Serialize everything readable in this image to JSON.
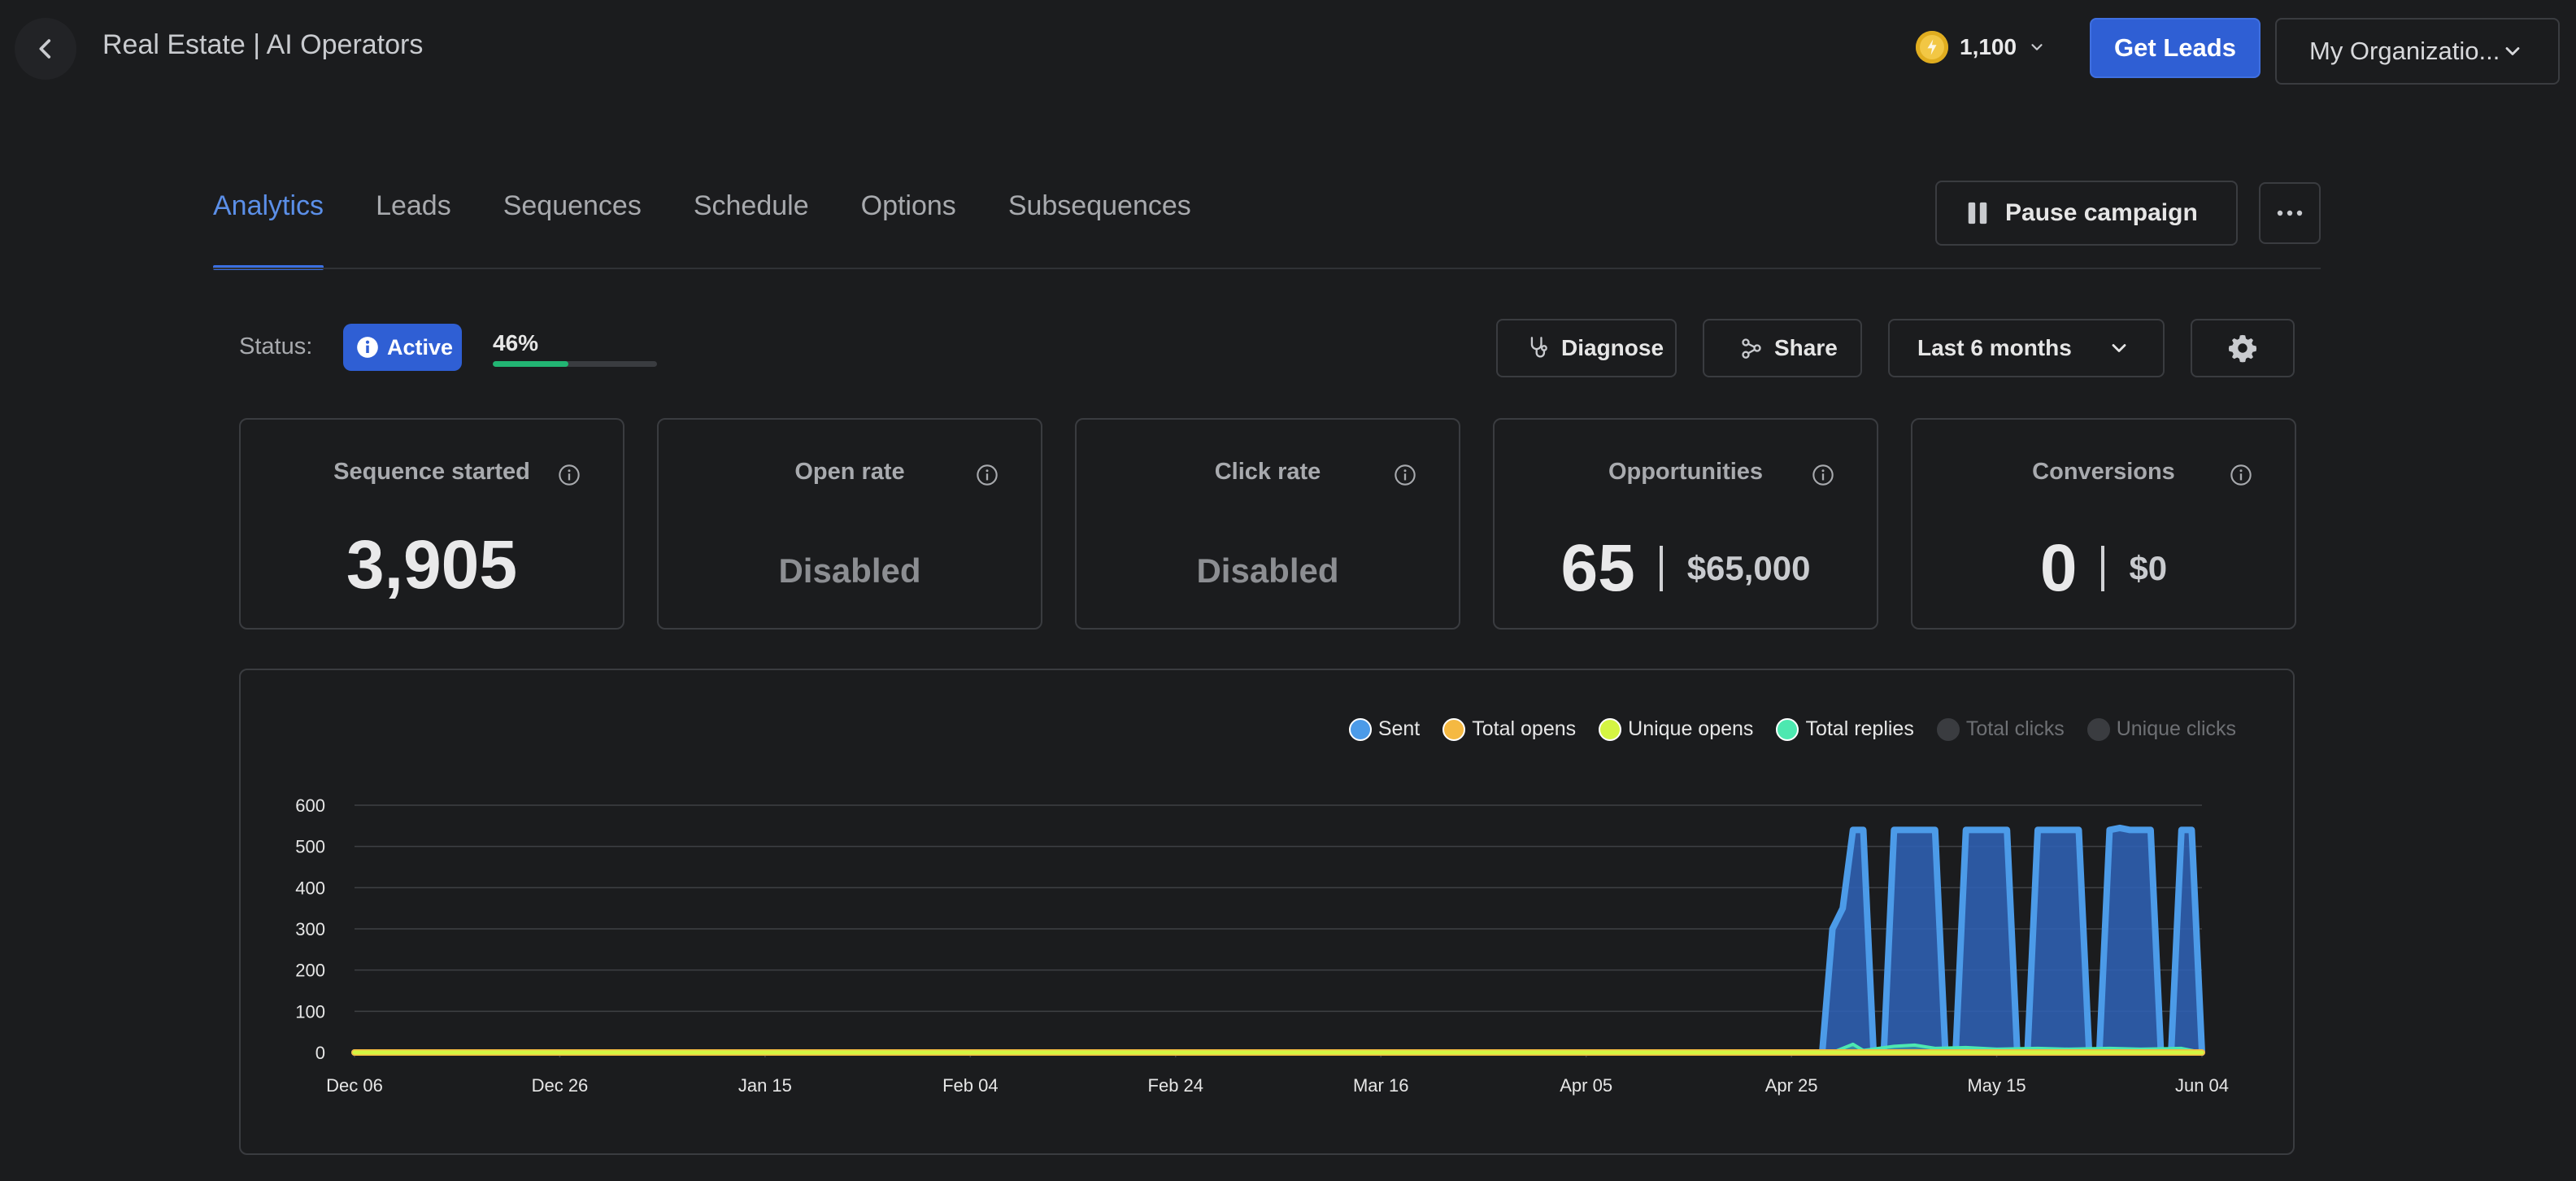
{
  "header": {
    "title": "Real Estate | AI Operators",
    "credits": "1,100",
    "get_leads_label": "Get Leads",
    "org_label": "My Organizatio..."
  },
  "tabs": [
    {
      "label": "Analytics",
      "active": true
    },
    {
      "label": "Leads",
      "active": false
    },
    {
      "label": "Sequences",
      "active": false
    },
    {
      "label": "Schedule",
      "active": false
    },
    {
      "label": "Options",
      "active": false
    },
    {
      "label": "Subsequences",
      "active": false
    }
  ],
  "actions": {
    "pause_label": "Pause campaign"
  },
  "status": {
    "label": "Status:",
    "value": "Active",
    "progress_text": "46%",
    "progress": 0.46
  },
  "toolbar": {
    "diagnose_label": "Diagnose",
    "share_label": "Share",
    "range_label": "Last 6 months"
  },
  "cards": [
    {
      "title": "Sequence started",
      "value": "3,905"
    },
    {
      "title": "Open rate",
      "value": "Disabled"
    },
    {
      "title": "Click rate",
      "value": "Disabled"
    },
    {
      "title": "Opportunities",
      "value": "65",
      "money": "$65,000"
    },
    {
      "title": "Conversions",
      "value": "0",
      "money": "$0"
    }
  ],
  "colors": {
    "accent": "#2f5fd4",
    "sent": "#4c9be8",
    "total_opens": "#f5b942",
    "unique_opens": "#d4f542",
    "total_replies": "#4de8b0",
    "disabled": "#3a3c40"
  },
  "chart_data": {
    "type": "area",
    "x_ticks": [
      "Dec 06",
      "Dec 26",
      "Jan 15",
      "Feb 04",
      "Feb 24",
      "Mar 16",
      "Apr 05",
      "Apr 25",
      "May 15",
      "Jun 04"
    ],
    "ylim": [
      0,
      600
    ],
    "y_ticks": [
      0,
      100,
      200,
      300,
      400,
      500,
      600
    ],
    "grid": true,
    "legend_position": "top-right",
    "legend": [
      {
        "name": "Sent",
        "enabled": true
      },
      {
        "name": "Total opens",
        "enabled": true
      },
      {
        "name": "Unique opens",
        "enabled": true
      },
      {
        "name": "Total replies",
        "enabled": true
      },
      {
        "name": "Total clicks",
        "enabled": false
      },
      {
        "name": "Unique clicks",
        "enabled": false
      }
    ],
    "series": [
      {
        "name": "Sent",
        "color": "#4c9be8",
        "points": [
          [
            "Dec 06",
            0
          ],
          [
            "Apr 28",
            0
          ],
          [
            "Apr 29",
            300
          ],
          [
            "Apr 30",
            350
          ],
          [
            "May 01",
            540
          ],
          [
            "May 02",
            540
          ],
          [
            "May 03",
            0
          ],
          [
            "May 04",
            0
          ],
          [
            "May 05",
            540
          ],
          [
            "May 06",
            540
          ],
          [
            "May 07",
            540
          ],
          [
            "May 08",
            540
          ],
          [
            "May 09",
            540
          ],
          [
            "May 10",
            0
          ],
          [
            "May 11",
            0
          ],
          [
            "May 12",
            540
          ],
          [
            "May 13",
            540
          ],
          [
            "May 14",
            540
          ],
          [
            "May 15",
            540
          ],
          [
            "May 16",
            540
          ],
          [
            "May 17",
            0
          ],
          [
            "May 18",
            0
          ],
          [
            "May 19",
            540
          ],
          [
            "May 20",
            540
          ],
          [
            "May 21",
            540
          ],
          [
            "May 22",
            540
          ],
          [
            "May 23",
            540
          ],
          [
            "May 24",
            0
          ],
          [
            "May 25",
            0
          ],
          [
            "May 26",
            540
          ],
          [
            "May 27",
            545
          ],
          [
            "May 28",
            540
          ],
          [
            "May 29",
            540
          ],
          [
            "May 30",
            540
          ],
          [
            "May 31",
            0
          ],
          [
            "Jun 01",
            0
          ],
          [
            "Jun 02",
            540
          ],
          [
            "Jun 03",
            540
          ],
          [
            "Jun 04",
            0
          ]
        ]
      },
      {
        "name": "Total replies",
        "color": "#4de8b0",
        "points": [
          [
            "Dec 06",
            0
          ],
          [
            "Apr 29",
            0
          ],
          [
            "May 01",
            20
          ],
          [
            "May 02",
            5
          ],
          [
            "May 05",
            15
          ],
          [
            "May 07",
            18
          ],
          [
            "May 09",
            10
          ],
          [
            "May 12",
            12
          ],
          [
            "May 15",
            8
          ],
          [
            "May 19",
            10
          ],
          [
            "May 22",
            8
          ],
          [
            "May 26",
            10
          ],
          [
            "May 29",
            8
          ],
          [
            "Jun 02",
            10
          ],
          [
            "Jun 04",
            0
          ]
        ]
      },
      {
        "name": "Total opens",
        "color": "#f5b942",
        "points": [
          [
            "Dec 06",
            0
          ],
          [
            "Jun 04",
            0
          ]
        ]
      },
      {
        "name": "Unique opens",
        "color": "#d4f542",
        "points": [
          [
            "Dec 06",
            0
          ],
          [
            "Jun 04",
            0
          ]
        ]
      }
    ]
  }
}
